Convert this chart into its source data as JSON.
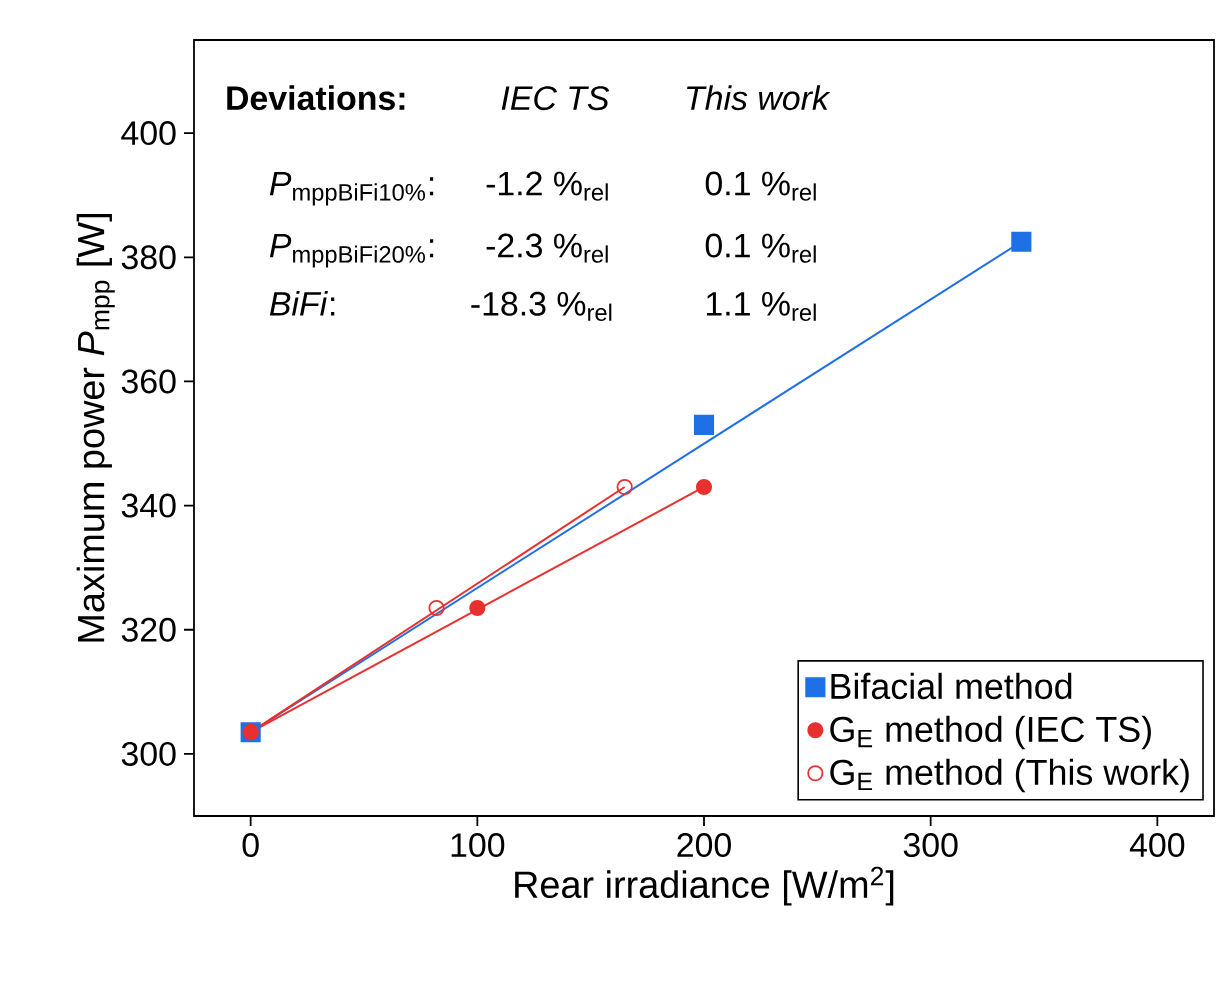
{
  "chart_data": {
    "type": "scatter",
    "xlabel": "Rear irradiance [W/m$^{2}$]",
    "ylabel": "Maximum power *P*$_{mpp}$ [W]",
    "xlim": [
      -25,
      425
    ],
    "ylim": [
      290,
      415
    ],
    "xticks": [
      0,
      100,
      200,
      300,
      400
    ],
    "yticks": [
      300,
      320,
      340,
      360,
      380,
      400
    ],
    "legend": "bottom right",
    "series": [
      {
        "name": "Bifacial method",
        "marker": "square",
        "color": "#1f6fe6",
        "x": [
          0,
          200,
          340
        ],
        "values": [
          303.5,
          353,
          382.5
        ]
      },
      {
        "name": "G$_{E}$ method (IEC TS)",
        "marker": "circle",
        "color": "#e8312f",
        "x": [
          0,
          100,
          200
        ],
        "values": [
          303.5,
          323.5,
          343
        ]
      },
      {
        "name": "G$_{E}$ method (This work)",
        "marker": "circle-open",
        "color": "#e8312f",
        "x": [
          0,
          82,
          165
        ],
        "values": [
          303.5,
          323.5,
          343
        ]
      },
      {
        "type": "line",
        "color": "#1f6fe6",
        "x": [
          0,
          340
        ],
        "values": [
          303.5,
          382.5
        ]
      },
      {
        "type": "line",
        "color": "#e8312f",
        "x": [
          0,
          200
        ],
        "values": [
          303.5,
          343
        ]
      },
      {
        "type": "line",
        "color": "#e8312f",
        "x": [
          0,
          165
        ],
        "values": [
          303.5,
          343
        ]
      }
    ],
    "annotations": [
      "Deviations:",
      "IEC TS",
      "This work",
      "\\textit{P}_{\\text{mppBiFi10\\%}}\\text{:}",
      "-1.2 %$_{rel}$",
      "0.1 %$_{rel}$",
      "\\textit{P}_{\\text{mppBiFi20\\%}}\\text{:}",
      "-2.3 %$_{rel}$",
      "0.1 %$_{rel}$",
      "*BiFi*:",
      "-18.3 %$_{rel}$",
      "1.1 %$_{rel}$"
    ]
  }
}
